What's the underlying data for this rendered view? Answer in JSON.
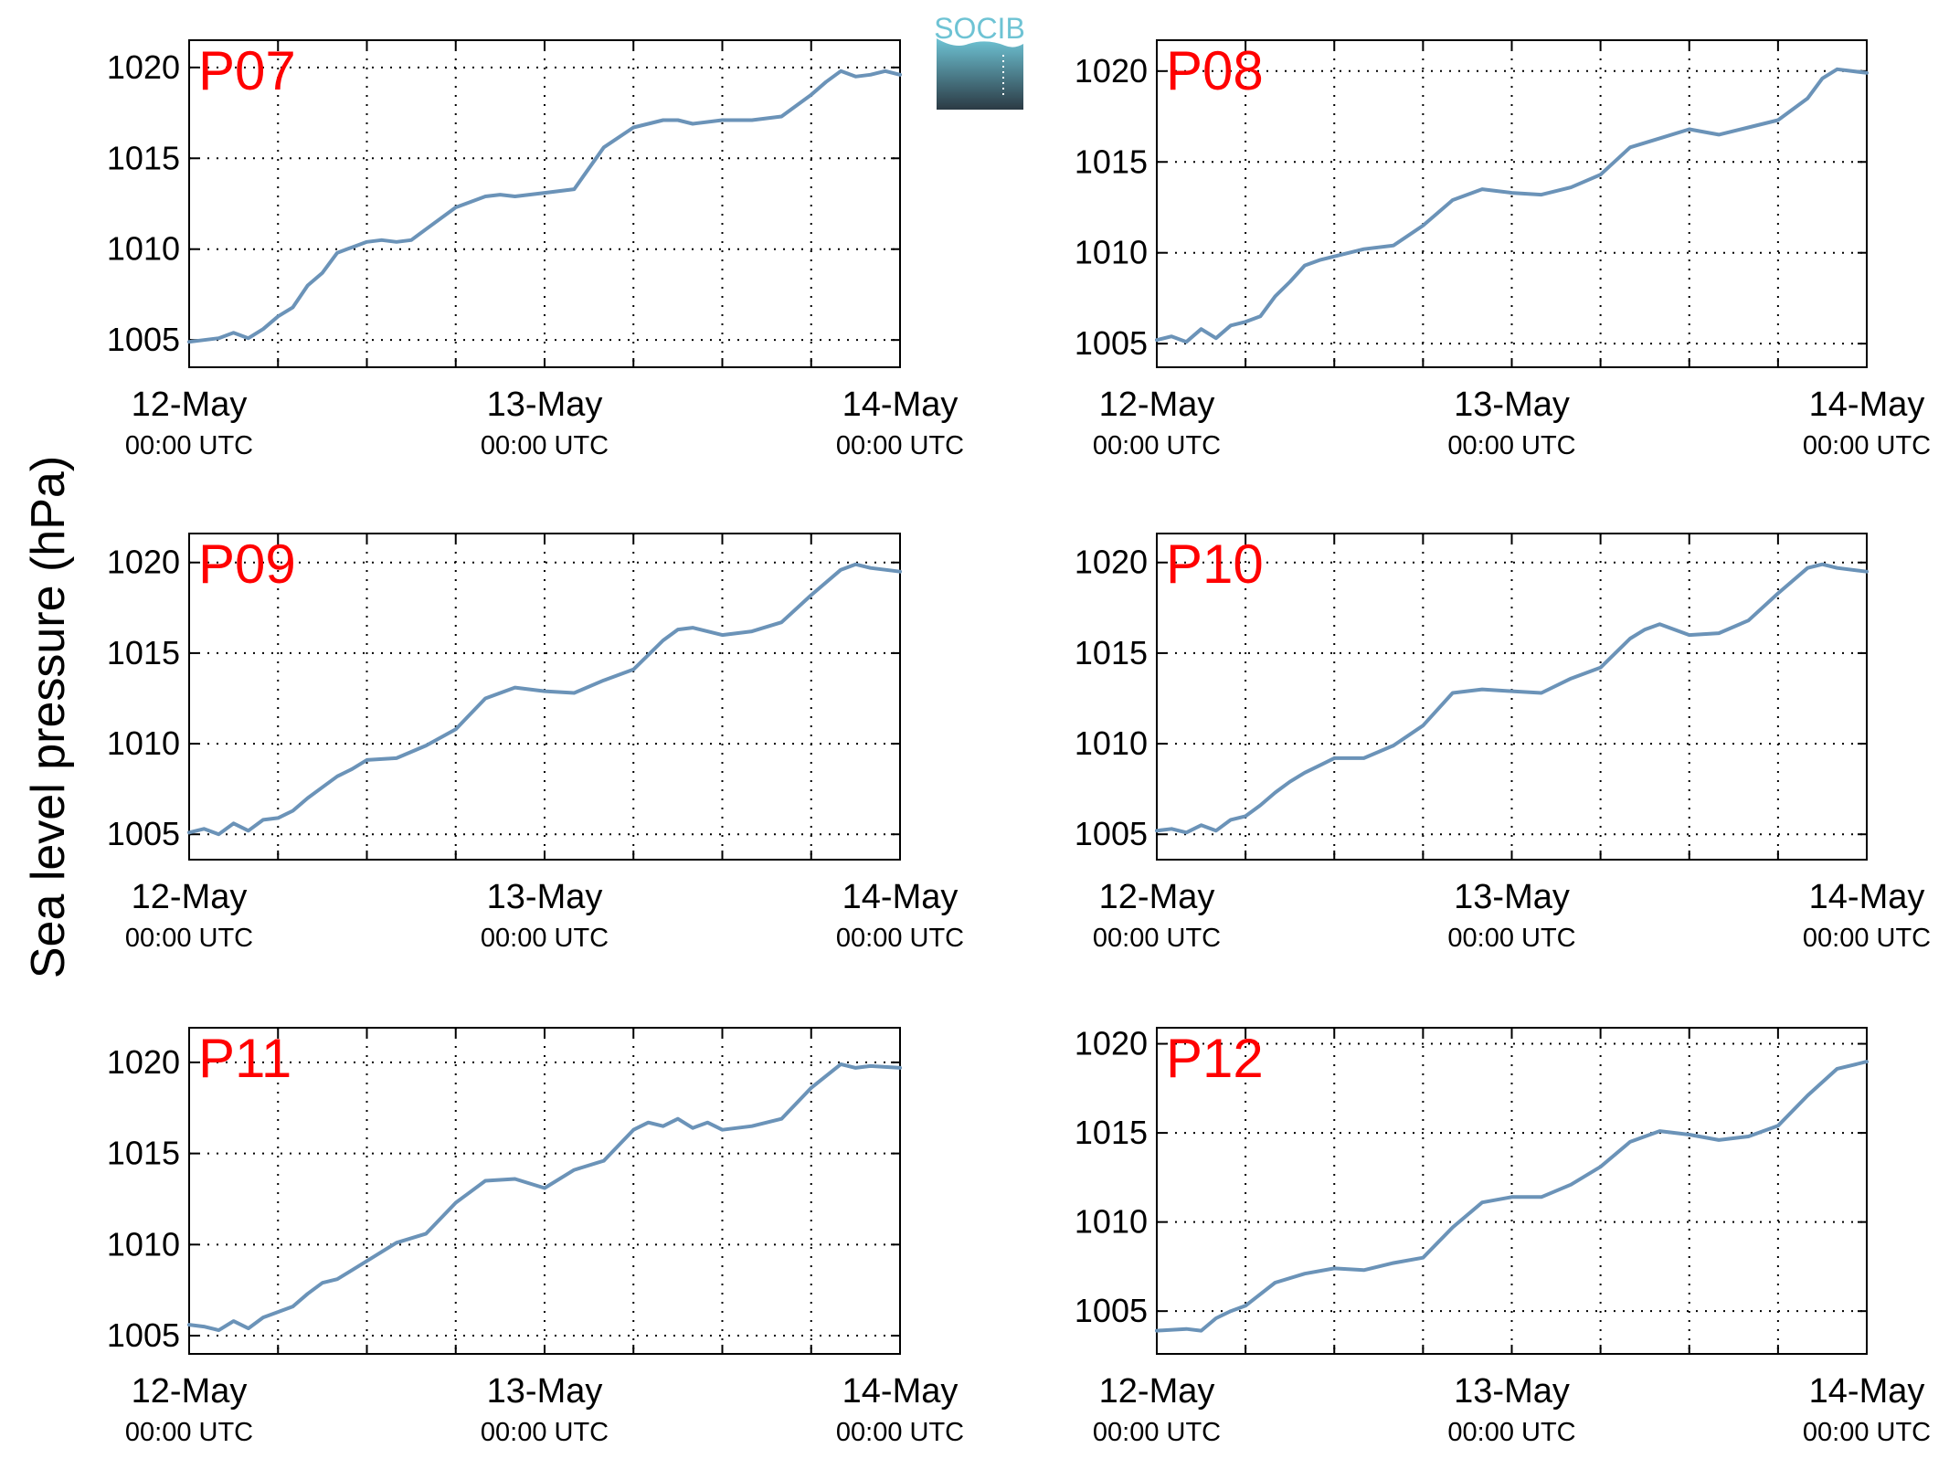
{
  "figure": {
    "ylabel": "Sea level pressure (hPa)",
    "logo_text": "SOCIB",
    "colors": {
      "line": "#6b93b8",
      "panel_label": "#ff0000",
      "axis": "#000000",
      "grid": "#000000",
      "logo_top": "#6ec3d4",
      "logo_bottom": "#2b3a44"
    }
  },
  "chart_data": [
    {
      "type": "line",
      "panel_label": "P07",
      "xlim": [
        "2024-05-12 00:00",
        "2024-05-14 00:00"
      ],
      "xticks": [
        {
          "x": "2024-05-12 00:00",
          "label": "12-May",
          "sublabel": "00:00 UTC"
        },
        {
          "x": "2024-05-13 00:00",
          "label": "13-May",
          "sublabel": "00:00 UTC"
        },
        {
          "x": "2024-05-14 00:00",
          "label": "14-May",
          "sublabel": "00:00 UTC"
        }
      ],
      "ylim": [
        1003.5,
        1021.5
      ],
      "yticks": [
        1005,
        1010,
        1015,
        1020
      ],
      "grid": true,
      "series": [
        {
          "x": [
            "2024-05-12 00:00",
            "2024-05-12 02:00",
            "2024-05-12 03:00",
            "2024-05-12 04:00",
            "2024-05-12 05:00",
            "2024-05-12 06:00",
            "2024-05-12 07:00",
            "2024-05-12 08:00",
            "2024-05-12 09:00",
            "2024-05-12 10:00",
            "2024-05-12 11:00",
            "2024-05-12 12:00",
            "2024-05-12 13:00",
            "2024-05-12 14:00",
            "2024-05-12 15:00",
            "2024-05-12 16:00",
            "2024-05-12 18:00",
            "2024-05-12 20:00",
            "2024-05-12 21:00",
            "2024-05-12 22:00",
            "2024-05-13 00:00",
            "2024-05-13 02:00",
            "2024-05-13 04:00",
            "2024-05-13 06:00",
            "2024-05-13 08:00",
            "2024-05-13 09:00",
            "2024-05-13 10:00",
            "2024-05-13 12:00",
            "2024-05-13 14:00",
            "2024-05-13 16:00",
            "2024-05-13 18:00",
            "2024-05-13 19:00",
            "2024-05-13 20:00",
            "2024-05-13 21:00",
            "2024-05-13 22:00",
            "2024-05-13 23:00",
            "2024-05-14 00:00"
          ],
          "y": [
            1004.9,
            1005.1,
            1005.4,
            1005.1,
            1005.6,
            1006.3,
            1006.8,
            1008.0,
            1008.7,
            1009.8,
            1010.1,
            1010.4,
            1010.5,
            1010.4,
            1010.5,
            1011.1,
            1012.3,
            1012.9,
            1013.0,
            1012.9,
            1013.1,
            1013.3,
            1015.6,
            1016.7,
            1017.1,
            1017.1,
            1016.9,
            1017.1,
            1017.1,
            1017.3,
            1018.5,
            1019.2,
            1019.8,
            1019.5,
            1019.6,
            1019.8,
            1019.6
          ]
        }
      ]
    },
    {
      "type": "line",
      "panel_label": "P08",
      "xlim": [
        "2024-05-12 00:00",
        "2024-05-14 00:00"
      ],
      "xticks": [
        {
          "x": "2024-05-12 00:00",
          "label": "12-May",
          "sublabel": "00:00 UTC"
        },
        {
          "x": "2024-05-13 00:00",
          "label": "13-May",
          "sublabel": "00:00 UTC"
        },
        {
          "x": "2024-05-14 00:00",
          "label": "14-May",
          "sublabel": "00:00 UTC"
        }
      ],
      "ylim": [
        1003.7,
        1021.7
      ],
      "yticks": [
        1005,
        1010,
        1015,
        1020
      ],
      "grid": true,
      "series": [
        {
          "x": [
            "2024-05-12 00:00",
            "2024-05-12 01:00",
            "2024-05-12 02:00",
            "2024-05-12 03:00",
            "2024-05-12 04:00",
            "2024-05-12 05:00",
            "2024-05-12 06:00",
            "2024-05-12 07:00",
            "2024-05-12 08:00",
            "2024-05-12 09:00",
            "2024-05-12 10:00",
            "2024-05-12 11:00",
            "2024-05-12 12:00",
            "2024-05-12 14:00",
            "2024-05-12 16:00",
            "2024-05-12 18:00",
            "2024-05-12 20:00",
            "2024-05-12 22:00",
            "2024-05-13 00:00",
            "2024-05-13 02:00",
            "2024-05-13 04:00",
            "2024-05-13 06:00",
            "2024-05-13 08:00",
            "2024-05-13 10:00",
            "2024-05-13 12:00",
            "2024-05-13 14:00",
            "2024-05-13 16:00",
            "2024-05-13 18:00",
            "2024-05-13 20:00",
            "2024-05-13 21:00",
            "2024-05-13 22:00",
            "2024-05-14 00:00"
          ],
          "y": [
            1005.2,
            1005.4,
            1005.1,
            1005.8,
            1005.3,
            1006.0,
            1006.2,
            1006.5,
            1007.6,
            1008.4,
            1009.3,
            1009.6,
            1009.8,
            1010.2,
            1010.4,
            1011.5,
            1012.9,
            1013.5,
            1013.3,
            1013.2,
            1013.6,
            1014.3,
            1015.8,
            1016.3,
            1016.8,
            1016.5,
            1016.9,
            1017.3,
            1018.5,
            1019.6,
            1020.1,
            1019.9
          ]
        }
      ]
    },
    {
      "type": "line",
      "panel_label": "P09",
      "xlim": [
        "2024-05-12 00:00",
        "2024-05-14 00:00"
      ],
      "xticks": [
        {
          "x": "2024-05-12 00:00",
          "label": "12-May",
          "sublabel": "00:00 UTC"
        },
        {
          "x": "2024-05-13 00:00",
          "label": "13-May",
          "sublabel": "00:00 UTC"
        },
        {
          "x": "2024-05-14 00:00",
          "label": "14-May",
          "sublabel": "00:00 UTC"
        }
      ],
      "ylim": [
        1003.6,
        1021.6
      ],
      "yticks": [
        1005,
        1010,
        1015,
        1020
      ],
      "grid": true,
      "series": [
        {
          "x": [
            "2024-05-12 00:00",
            "2024-05-12 01:00",
            "2024-05-12 02:00",
            "2024-05-12 03:00",
            "2024-05-12 04:00",
            "2024-05-12 05:00",
            "2024-05-12 06:00",
            "2024-05-12 07:00",
            "2024-05-12 08:00",
            "2024-05-12 09:00",
            "2024-05-12 10:00",
            "2024-05-12 11:00",
            "2024-05-12 12:00",
            "2024-05-12 14:00",
            "2024-05-12 16:00",
            "2024-05-12 18:00",
            "2024-05-12 20:00",
            "2024-05-12 22:00",
            "2024-05-13 00:00",
            "2024-05-13 02:00",
            "2024-05-13 04:00",
            "2024-05-13 06:00",
            "2024-05-13 08:00",
            "2024-05-13 09:00",
            "2024-05-13 10:00",
            "2024-05-13 12:00",
            "2024-05-13 14:00",
            "2024-05-13 16:00",
            "2024-05-13 18:00",
            "2024-05-13 20:00",
            "2024-05-13 21:00",
            "2024-05-13 22:00",
            "2024-05-14 00:00"
          ],
          "y": [
            1005.1,
            1005.3,
            1005.0,
            1005.6,
            1005.2,
            1005.8,
            1005.9,
            1006.3,
            1007.0,
            1007.6,
            1008.2,
            1008.6,
            1009.1,
            1009.2,
            1009.9,
            1010.8,
            1012.5,
            1013.1,
            1012.9,
            1012.8,
            1013.5,
            1014.1,
            1015.7,
            1016.3,
            1016.4,
            1016.0,
            1016.2,
            1016.7,
            1018.2,
            1019.6,
            1019.9,
            1019.7,
            1019.5
          ]
        }
      ]
    },
    {
      "type": "line",
      "panel_label": "P10",
      "xlim": [
        "2024-05-12 00:00",
        "2024-05-14 00:00"
      ],
      "xticks": [
        {
          "x": "2024-05-12 00:00",
          "label": "12-May",
          "sublabel": "00:00 UTC"
        },
        {
          "x": "2024-05-13 00:00",
          "label": "13-May",
          "sublabel": "00:00 UTC"
        },
        {
          "x": "2024-05-14 00:00",
          "label": "14-May",
          "sublabel": "00:00 UTC"
        }
      ],
      "ylim": [
        1003.6,
        1021.6
      ],
      "yticks": [
        1005,
        1010,
        1015,
        1020
      ],
      "grid": true,
      "series": [
        {
          "x": [
            "2024-05-12 00:00",
            "2024-05-12 01:00",
            "2024-05-12 02:00",
            "2024-05-12 03:00",
            "2024-05-12 04:00",
            "2024-05-12 05:00",
            "2024-05-12 06:00",
            "2024-05-12 07:00",
            "2024-05-12 08:00",
            "2024-05-12 09:00",
            "2024-05-12 10:00",
            "2024-05-12 11:00",
            "2024-05-12 12:00",
            "2024-05-12 14:00",
            "2024-05-12 16:00",
            "2024-05-12 18:00",
            "2024-05-12 20:00",
            "2024-05-12 22:00",
            "2024-05-13 00:00",
            "2024-05-13 02:00",
            "2024-05-13 04:00",
            "2024-05-13 06:00",
            "2024-05-13 08:00",
            "2024-05-13 09:00",
            "2024-05-13 10:00",
            "2024-05-13 12:00",
            "2024-05-13 14:00",
            "2024-05-13 16:00",
            "2024-05-13 18:00",
            "2024-05-13 20:00",
            "2024-05-13 21:00",
            "2024-05-13 22:00",
            "2024-05-14 00:00"
          ],
          "y": [
            1005.2,
            1005.3,
            1005.1,
            1005.5,
            1005.2,
            1005.8,
            1006.0,
            1006.6,
            1007.3,
            1007.9,
            1008.4,
            1008.8,
            1009.2,
            1009.2,
            1009.9,
            1011.0,
            1012.8,
            1013.0,
            1012.9,
            1012.8,
            1013.6,
            1014.2,
            1015.8,
            1016.3,
            1016.6,
            1016.0,
            1016.1,
            1016.8,
            1018.3,
            1019.7,
            1019.9,
            1019.7,
            1019.5
          ]
        }
      ]
    },
    {
      "type": "line",
      "panel_label": "P11",
      "xlim": [
        "2024-05-12 00:00",
        "2024-05-14 00:00"
      ],
      "xticks": [
        {
          "x": "2024-05-12 00:00",
          "label": "12-May",
          "sublabel": "00:00 UTC"
        },
        {
          "x": "2024-05-13 00:00",
          "label": "13-May",
          "sublabel": "00:00 UTC"
        },
        {
          "x": "2024-05-14 00:00",
          "label": "14-May",
          "sublabel": "00:00 UTC"
        }
      ],
      "ylim": [
        1004.0,
        1021.9
      ],
      "yticks": [
        1005,
        1010,
        1015,
        1020
      ],
      "grid": true,
      "series": [
        {
          "x": [
            "2024-05-12 00:00",
            "2024-05-12 01:00",
            "2024-05-12 02:00",
            "2024-05-12 03:00",
            "2024-05-12 04:00",
            "2024-05-12 05:00",
            "2024-05-12 06:00",
            "2024-05-12 07:00",
            "2024-05-12 08:00",
            "2024-05-12 09:00",
            "2024-05-12 10:00",
            "2024-05-12 11:00",
            "2024-05-12 12:00",
            "2024-05-12 13:00",
            "2024-05-12 14:00",
            "2024-05-12 16:00",
            "2024-05-12 18:00",
            "2024-05-12 20:00",
            "2024-05-12 22:00",
            "2024-05-13 00:00",
            "2024-05-13 02:00",
            "2024-05-13 04:00",
            "2024-05-13 06:00",
            "2024-05-13 07:00",
            "2024-05-13 08:00",
            "2024-05-13 09:00",
            "2024-05-13 10:00",
            "2024-05-13 11:00",
            "2024-05-13 12:00",
            "2024-05-13 14:00",
            "2024-05-13 16:00",
            "2024-05-13 18:00",
            "2024-05-13 20:00",
            "2024-05-13 21:00",
            "2024-05-13 22:00",
            "2024-05-14 00:00"
          ],
          "y": [
            1005.6,
            1005.5,
            1005.3,
            1005.8,
            1005.4,
            1006.0,
            1006.3,
            1006.6,
            1007.3,
            1007.9,
            1008.1,
            1008.6,
            1009.1,
            1009.6,
            1010.1,
            1010.6,
            1012.3,
            1013.5,
            1013.6,
            1013.1,
            1014.1,
            1014.6,
            1016.3,
            1016.7,
            1016.5,
            1016.9,
            1016.4,
            1016.7,
            1016.3,
            1016.5,
            1016.9,
            1018.6,
            1019.9,
            1019.7,
            1019.8,
            1019.7
          ]
        }
      ]
    },
    {
      "type": "line",
      "panel_label": "P12",
      "xlim": [
        "2024-05-12 00:00",
        "2024-05-14 00:00"
      ],
      "xticks": [
        {
          "x": "2024-05-12 00:00",
          "label": "12-May",
          "sublabel": "00:00 UTC"
        },
        {
          "x": "2024-05-13 00:00",
          "label": "13-May",
          "sublabel": "00:00 UTC"
        },
        {
          "x": "2024-05-14 00:00",
          "label": "14-May",
          "sublabel": "00:00 UTC"
        }
      ],
      "ylim": [
        1002.6,
        1020.9
      ],
      "yticks": [
        1005,
        1010,
        1015,
        1020
      ],
      "grid": true,
      "series": [
        {
          "x": [
            "2024-05-12 00:00",
            "2024-05-12 02:00",
            "2024-05-12 03:00",
            "2024-05-12 04:00",
            "2024-05-12 05:00",
            "2024-05-12 06:00",
            "2024-05-12 08:00",
            "2024-05-12 10:00",
            "2024-05-12 12:00",
            "2024-05-12 14:00",
            "2024-05-12 16:00",
            "2024-05-12 18:00",
            "2024-05-12 20:00",
            "2024-05-12 22:00",
            "2024-05-13 00:00",
            "2024-05-13 02:00",
            "2024-05-13 04:00",
            "2024-05-13 06:00",
            "2024-05-13 08:00",
            "2024-05-13 10:00",
            "2024-05-13 12:00",
            "2024-05-13 14:00",
            "2024-05-13 16:00",
            "2024-05-13 18:00",
            "2024-05-13 20:00",
            "2024-05-13 22:00",
            "2024-05-14 00:00"
          ],
          "y": [
            1003.9,
            1004.0,
            1003.9,
            1004.6,
            1005.0,
            1005.3,
            1006.6,
            1007.1,
            1007.4,
            1007.3,
            1007.7,
            1008.0,
            1009.7,
            1011.1,
            1011.4,
            1011.4,
            1012.1,
            1013.1,
            1014.5,
            1015.1,
            1014.9,
            1014.6,
            1014.8,
            1015.4,
            1017.1,
            1018.6,
            1019.0
          ]
        }
      ]
    }
  ]
}
